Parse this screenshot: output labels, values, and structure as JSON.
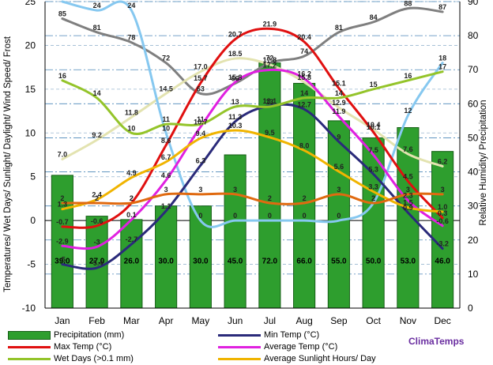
{
  "chart_data": {
    "type": "bar+line",
    "brand": "ClimaTemps",
    "categories": [
      "Jan",
      "Feb",
      "Mar",
      "Apr",
      "May",
      "Jun",
      "Jul",
      "Aug",
      "Sep",
      "Oct",
      "Nov",
      "Dec"
    ],
    "ylabel_left": "Temperatures/ Wet Days/ Sunlight/ Daylight/ Wind Speed/ Frost",
    "ylabel_right": "Relative Humidity/ Precipitation",
    "ylim_left": [
      -10,
      25
    ],
    "ylim_right": [
      0,
      90
    ],
    "yticks_left": [
      "-10",
      "-5",
      "0",
      "5",
      "10",
      "15",
      "20",
      "25"
    ],
    "yticks_right": [
      "0",
      "10",
      "20",
      "30",
      "40",
      "50",
      "60",
      "70",
      "80",
      "90"
    ],
    "bars": {
      "name": "Precipitation (mm)",
      "axis": "right",
      "color": "#2e9e2e",
      "values": [
        39.0,
        27.0,
        26.0,
        30.0,
        30.0,
        45.0,
        72.0,
        66.0,
        55.0,
        50.0,
        53.0,
        46.0
      ],
      "labels": [
        "39.0",
        "27.0",
        "26.0",
        "30.0",
        "30.0",
        "45.0",
        "72.0",
        "66.0",
        "55.0",
        "50.0",
        "53.0",
        "46.0"
      ]
    },
    "series": [
      {
        "name": "Relative Humidity",
        "axis": "right",
        "color": "#7f7f7f",
        "values": [
          85,
          81,
          78,
          72,
          63,
          66,
          72,
          74,
          81,
          84,
          88,
          87
        ],
        "labels": [
          "85",
          "81",
          "78",
          "72",
          "63",
          "66",
          "72",
          "74",
          "81",
          "84",
          "88",
          "87"
        ]
      },
      {
        "name": "Average Daylight Hours/ Day",
        "axis": "left",
        "color": "#e3e3b0",
        "values": [
          7.0,
          9.2,
          11.8,
          14.5,
          17.0,
          18.5,
          17.8,
          15.8,
          12.9,
          10.4,
          7.6,
          6.2
        ],
        "labels": [
          "7.0",
          "9.2",
          "11.8",
          "14.5",
          "17.0",
          "18.5",
          "17.8",
          "15.8",
          "12.9",
          "10.4",
          "7.6",
          "6.2"
        ]
      },
      {
        "name": "Frost",
        "axis": "left",
        "color": "#86c8f0",
        "values": [
          25,
          24,
          24,
          10,
          0,
          0,
          0,
          0,
          0,
          2,
          12,
          18
        ],
        "labels": [
          "25",
          "24",
          "24",
          "10",
          "0",
          "0",
          "0",
          "0",
          "0",
          "2",
          "12",
          "18"
        ]
      },
      {
        "name": "Max Temp (°C)",
        "axis": "left",
        "color": "#e01010",
        "values": [
          -0.7,
          -0.6,
          2.0,
          8.6,
          15.7,
          20.7,
          21.9,
          20.4,
          15.1,
          10.1,
          4.5,
          0.3
        ],
        "labels": [
          "-0.7",
          "-0.6",
          "2",
          "8.6",
          "15.7",
          "20.7",
          "21.9",
          "20.4",
          "15.1",
          "10.1",
          "4.5",
          "0.3"
        ]
      },
      {
        "name": "Min Temp (°C)",
        "axis": "left",
        "color": "#2a2a7a",
        "values": [
          -5.0,
          -5.4,
          -2.7,
          1.1,
          6.3,
          11.3,
          13.1,
          12.7,
          9.0,
          5.3,
          0.9,
          -3.2
        ],
        "labels": [
          "-5",
          "-5.4",
          "-2.7",
          "1.1",
          "6.3",
          "11.3",
          "13.1",
          "12.7",
          "9",
          "5.3",
          "0.9",
          "-3.2"
        ]
      },
      {
        "name": "Average Temp (°C)",
        "axis": "left",
        "color": "#e020e0",
        "values": [
          -2.9,
          -3.0,
          0.1,
          4.6,
          10.7,
          15.8,
          17.2,
          16.2,
          11.9,
          7.5,
          2.3,
          -0.6
        ],
        "labels": [
          "-2.9",
          "-3",
          "0.1",
          "4.6",
          "10.7",
          "15.8",
          "17.2",
          "16.2",
          "11.9",
          "7.5",
          "2.3",
          "-0.6"
        ]
      },
      {
        "name": "Wet Days (>0.1 mm)",
        "axis": "left",
        "color": "#94c42a",
        "values": [
          16,
          14,
          10,
          11,
          11,
          13,
          13,
          14,
          14,
          15,
          16,
          17
        ],
        "labels": [
          "16",
          "14",
          "10",
          "11",
          "11",
          "13",
          "13",
          "14",
          "14",
          "15",
          "16",
          "17"
        ]
      },
      {
        "name": "Average Sunlight Hours/ Day",
        "axis": "left",
        "color": "#f0b400",
        "values": [
          1.3,
          2.4,
          4.9,
          6.7,
          9.4,
          10.3,
          9.5,
          8.0,
          5.6,
          3.3,
          1.5,
          1.0
        ],
        "labels": [
          "1.3",
          "2.4",
          "4.9",
          "6.7",
          "9.4",
          "10.3",
          "9.5",
          "8.0",
          "5.6",
          "3.3",
          "1.5",
          "1.0"
        ]
      },
      {
        "name": "Wind Speed",
        "axis": "left",
        "color": "#e06a10",
        "values": [
          2,
          2,
          2,
          3,
          3,
          3,
          2,
          2,
          3,
          2,
          3,
          3
        ],
        "labels": [
          "2",
          "2",
          "2",
          "3",
          "3",
          "3",
          "2",
          "2",
          "3",
          "2",
          "3",
          "3"
        ]
      }
    ],
    "legend": [
      {
        "label": "Precipitation (mm)",
        "kind": "bar",
        "color": "#2e9e2e"
      },
      {
        "label": "Min Temp (°C)",
        "kind": "line",
        "color": "#2a2a7a"
      },
      {
        "label": "Max Temp (°C)",
        "kind": "line",
        "color": "#e01010"
      },
      {
        "label": "Average Temp (°C)",
        "kind": "line",
        "color": "#e020e0"
      },
      {
        "label": "Wet Days (>0.1 mm)",
        "kind": "line",
        "color": "#94c42a"
      },
      {
        "label": "Average Sunlight Hours/ Day",
        "kind": "line",
        "color": "#f0b400"
      }
    ],
    "legend_position": "bottom",
    "grid": true
  }
}
